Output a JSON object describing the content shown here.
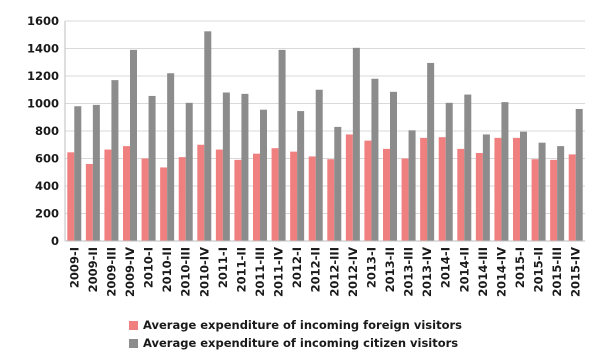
{
  "chart_data": {
    "type": "bar",
    "title": "",
    "xlabel": "",
    "ylabel": "",
    "ylim": [
      0,
      1600
    ],
    "yticks": [
      0,
      200,
      400,
      600,
      800,
      1000,
      1200,
      1400,
      1600
    ],
    "grid": "horizontal",
    "legend_position": "bottom",
    "categories": [
      "2009-I",
      "2009-II",
      "2009-III",
      "2009-IV",
      "2010-I",
      "2010-II",
      "2010-III",
      "2010-IV",
      "2011-I",
      "2011-II",
      "2011-III",
      "2011-IV",
      "2012-I",
      "2012-II",
      "2012-III",
      "2012-IV",
      "2013-I",
      "2013-II",
      "2013-III",
      "2013-IV",
      "2014-I",
      "2014-II",
      "2014-III",
      "2014-IV",
      "2015-I",
      "2015-II",
      "2015-III",
      "2015-IV"
    ],
    "series": [
      {
        "name": "Average expenditure of incoming foreign visitors",
        "color": "#f08080",
        "values": [
          645,
          560,
          665,
          690,
          600,
          535,
          610,
          700,
          665,
          590,
          635,
          675,
          650,
          615,
          595,
          775,
          730,
          670,
          600,
          750,
          755,
          670,
          640,
          750,
          750,
          595,
          590,
          630
        ]
      },
      {
        "name": "Average expenditure of incoming citizen visitors",
        "color": "#8c8c8c",
        "values": [
          980,
          990,
          1170,
          1390,
          1055,
          1220,
          1005,
          1525,
          1080,
          1070,
          955,
          1390,
          945,
          1100,
          830,
          1405,
          1180,
          1085,
          805,
          1295,
          1005,
          1065,
          775,
          1010,
          795,
          715,
          690,
          960
        ]
      }
    ]
  }
}
